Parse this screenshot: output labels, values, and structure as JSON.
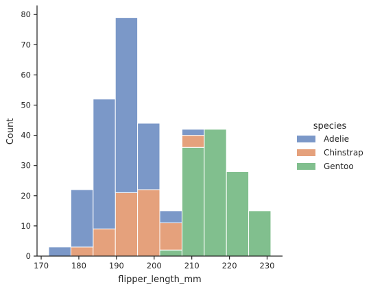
{
  "chart_data": {
    "type": "bar",
    "variant": "stacked-histogram",
    "xlabel": "flipper_length_mm",
    "ylabel": "Count",
    "xlim": [
      168.9,
      234.1
    ],
    "ylim": [
      0,
      83
    ],
    "xticks": [
      170,
      180,
      190,
      200,
      210,
      220,
      230
    ],
    "yticks": [
      0,
      10,
      20,
      30,
      40,
      50,
      60,
      70,
      80
    ],
    "bin_edges": [
      172.0,
      177.9,
      183.8,
      189.7,
      195.6,
      201.5,
      207.4,
      213.3,
      219.2,
      225.1,
      231.0
    ],
    "legend": {
      "title": "species",
      "position": "right"
    },
    "series": [
      {
        "name": "Gentoo",
        "color": "#81bf8e",
        "values": [
          0,
          0,
          0,
          0,
          0,
          2,
          36,
          42,
          28,
          15
        ]
      },
      {
        "name": "Chinstrap",
        "color": "#e5a17c",
        "values": [
          0,
          3,
          9,
          21,
          22,
          9,
          4,
          0,
          0,
          0
        ]
      },
      {
        "name": "Adelie",
        "color": "#7b98c8",
        "values": [
          3,
          19,
          43,
          58,
          22,
          4,
          2,
          0,
          0,
          0
        ]
      }
    ]
  }
}
